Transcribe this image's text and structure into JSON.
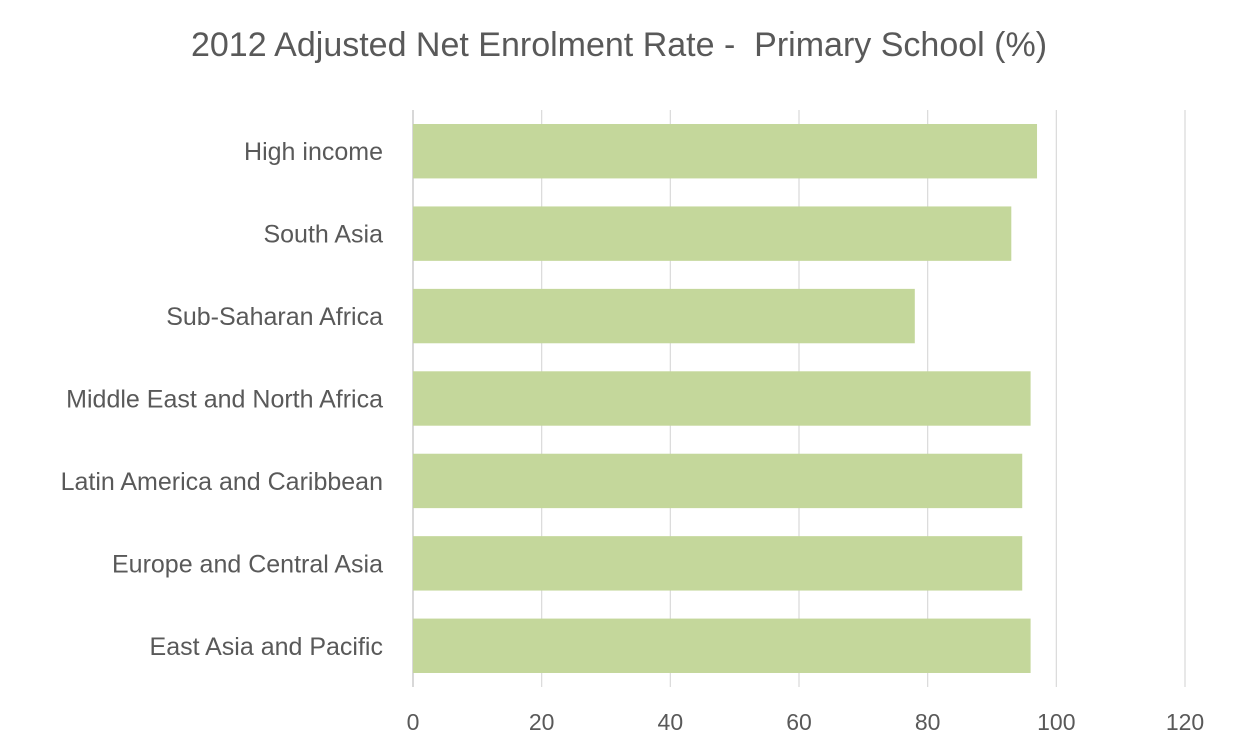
{
  "chart_data": {
    "type": "bar",
    "orientation": "horizontal",
    "title": "2012 Adjusted Net Enrolment Rate -  Primary School (%)",
    "xlabel": "",
    "ylabel": "",
    "categories": [
      "High income",
      "South Asia",
      "Sub-Saharan Africa",
      "Middle East and North Africa",
      "Latin America and Caribbean",
      "Europe and Central Asia",
      "East Asia and Pacific "
    ],
    "values": [
      97,
      93,
      78,
      96,
      94.7,
      94.7,
      96
    ],
    "xlim": [
      0,
      120
    ],
    "xticks": [
      "0",
      "20",
      "40",
      "60",
      "80",
      "100",
      "120"
    ],
    "grid": "vertical",
    "legend": "none",
    "colors": {
      "bar": "#c4d79b",
      "grid": "#d9d9d9",
      "text": "#595959"
    }
  }
}
